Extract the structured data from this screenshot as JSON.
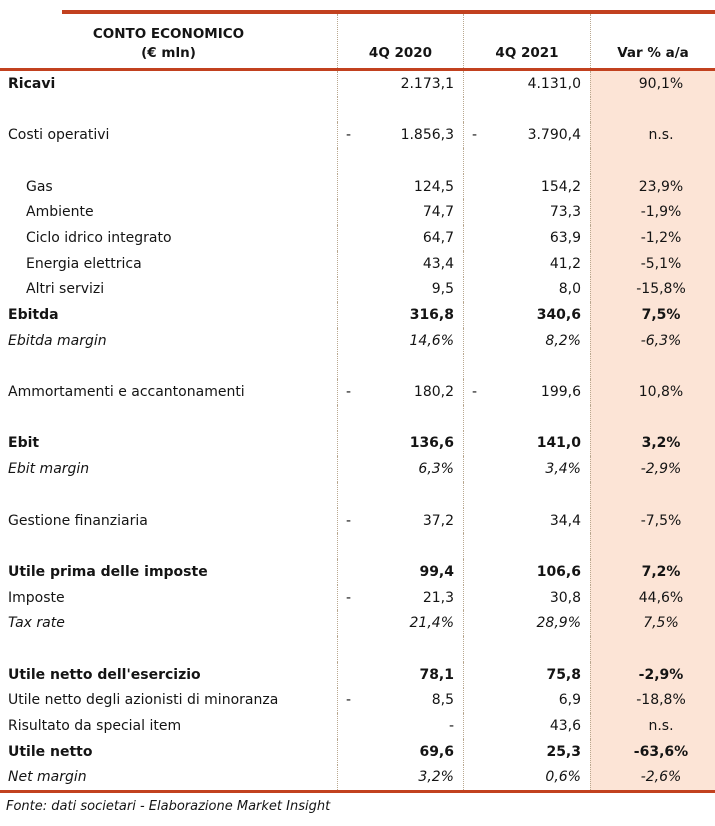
{
  "colors": {
    "accent": "#c2411f",
    "var_bg": "#fce4d6",
    "divider": "#b9a890"
  },
  "header": {
    "title_line1": "CONTO ECONOMICO",
    "title_line2": "(€ mln)",
    "col_4q2020": "4Q 2020",
    "col_4q2021": "4Q 2021",
    "col_var": "Var % a/a"
  },
  "table": {
    "rows": [
      {
        "label": "Ricavi",
        "v1": "2.173,1",
        "v2": "4.131,0",
        "var": "90,1%",
        "type": "label-bold"
      },
      {
        "type": "blank"
      },
      {
        "label": "Costi operativi",
        "s1": "-",
        "v1": "1.856,3",
        "s2": "-",
        "v2": "3.790,4",
        "var": "n.s."
      },
      {
        "type": "blank"
      },
      {
        "label": "Gas",
        "v1": "124,5",
        "v2": "154,2",
        "var": "23,9%",
        "indent": true
      },
      {
        "label": "Ambiente",
        "v1": "74,7",
        "v2": "73,3",
        "var": "-1,9%",
        "indent": true
      },
      {
        "label": "Ciclo idrico integrato",
        "v1": "64,7",
        "v2": "63,9",
        "var": "-1,2%",
        "indent": true
      },
      {
        "label": "Energia elettrica",
        "v1": "43,4",
        "v2": "41,2",
        "var": "-5,1%",
        "indent": true
      },
      {
        "label": "Altri servizi",
        "v1": "9,5",
        "v2": "8,0",
        "var": "-15,8%",
        "indent": true
      },
      {
        "label": "Ebitda",
        "v1": "316,8",
        "v2": "340,6",
        "var": "7,5%",
        "type": "bold"
      },
      {
        "label": "Ebitda margin",
        "v1": "14,6%",
        "v2": "8,2%",
        "var": "-6,3%",
        "type": "italic"
      },
      {
        "type": "blank"
      },
      {
        "label": "Ammortamenti e accantonamenti",
        "s1": "-",
        "v1": "180,2",
        "s2": "-",
        "v2": "199,6",
        "var": "10,8%"
      },
      {
        "type": "blank"
      },
      {
        "label": "Ebit",
        "v1": "136,6",
        "v2": "141,0",
        "var": "3,2%",
        "type": "bold"
      },
      {
        "label": "Ebit margin",
        "v1": "6,3%",
        "v2": "3,4%",
        "var": "-2,9%",
        "type": "italic"
      },
      {
        "type": "blank"
      },
      {
        "label": "Gestione finanziaria",
        "s1": "-",
        "v1": "37,2",
        "v2": "34,4",
        "var": "-7,5%"
      },
      {
        "type": "blank"
      },
      {
        "label": "Utile prima delle imposte",
        "v1": "99,4",
        "v2": "106,6",
        "var": "7,2%",
        "type": "bold"
      },
      {
        "label": "Imposte",
        "s1": "-",
        "v1": "21,3",
        "v2": "30,8",
        "var": "44,6%"
      },
      {
        "label": "Tax rate",
        "v1": "21,4%",
        "v2": "28,9%",
        "var": "7,5%",
        "type": "italic"
      },
      {
        "type": "blank"
      },
      {
        "label": "Utile netto dell'esercizio",
        "v1": "78,1",
        "v2": "75,8",
        "var": "-2,9%",
        "type": "bold"
      },
      {
        "label": "Utile netto degli azionisti di minoranza",
        "s1": "-",
        "v1": "8,5",
        "v2": "6,9",
        "var": "-18,8%"
      },
      {
        "label": "Risultato da special item",
        "v1": "-",
        "v2": "43,6",
        "var": "n.s."
      },
      {
        "label": "Utile netto",
        "v1": "69,6",
        "v2": "25,3",
        "var": "-63,6%",
        "type": "bold"
      },
      {
        "label": "Net margin",
        "v1": "3,2%",
        "v2": "0,6%",
        "var": "-2,6%",
        "type": "italic"
      }
    ]
  },
  "footer": {
    "source": "Fonte: dati societari - Elaborazione Market Insight"
  }
}
